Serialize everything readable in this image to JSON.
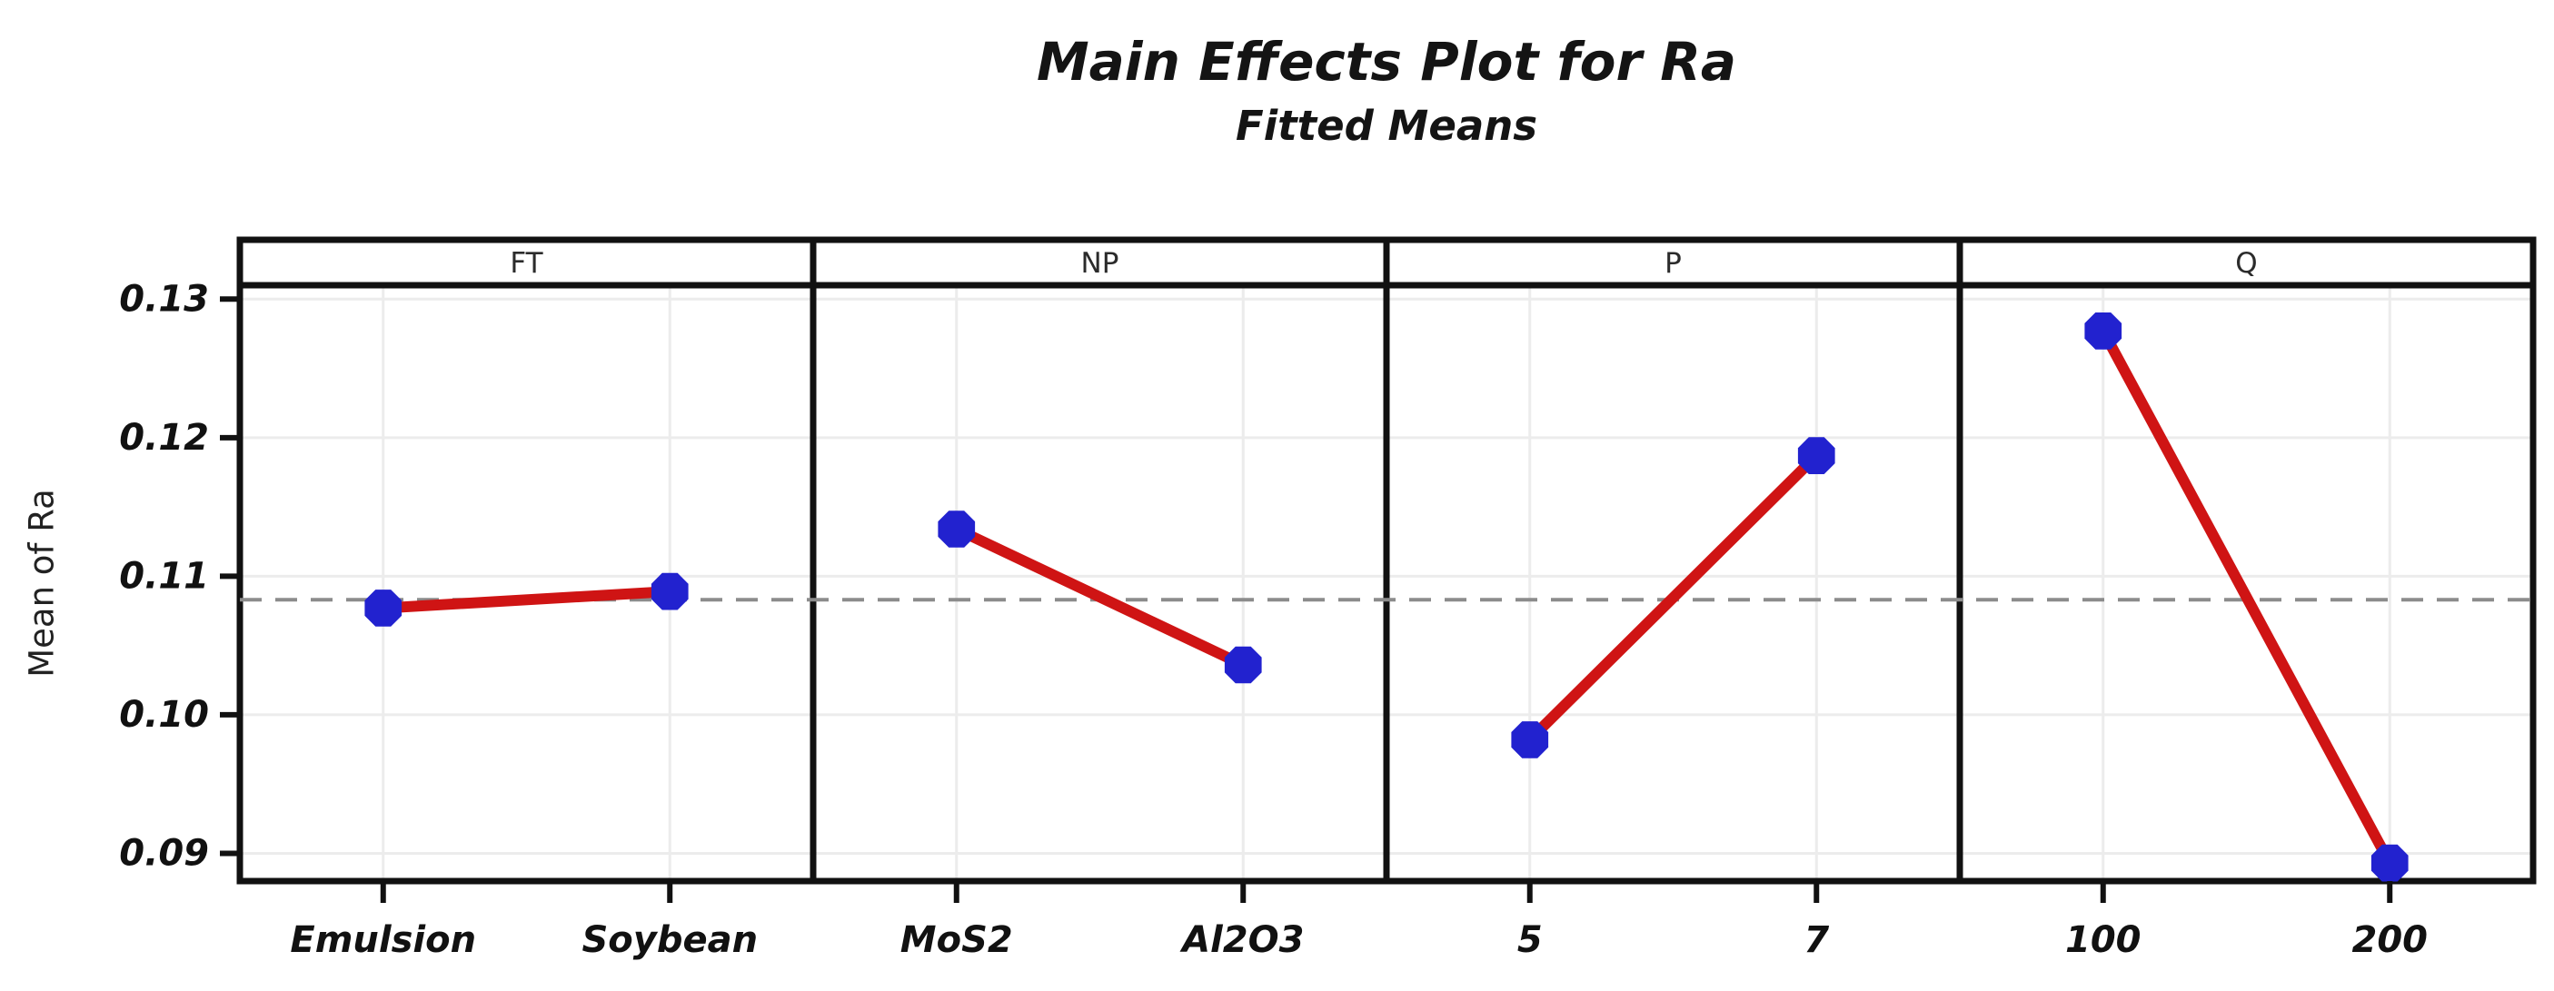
{
  "title": "Main Effects Plot for Ra",
  "subtitle": "Fitted Means",
  "chart_data": {
    "type": "line",
    "title": "Main Effects Plot for Ra",
    "subtitle": "Fitted Means",
    "ylabel": "Mean of Ra",
    "ylim": [
      0.088,
      0.131
    ],
    "yticks": [
      0.09,
      0.1,
      0.11,
      0.12,
      0.13
    ],
    "ytick_labels": [
      "0.09",
      "0.10",
      "0.11",
      "0.12",
      "0.13"
    ],
    "reference_line_mean": 0.1083,
    "grid": true,
    "legend": "none",
    "panels": [
      {
        "factor": "FT",
        "categories": [
          "Emulsion",
          "Soybean"
        ],
        "values": [
          0.1077,
          0.1089
        ]
      },
      {
        "factor": "NP",
        "categories": [
          "MoS2",
          "Al2O3"
        ],
        "values": [
          0.1134,
          0.1036
        ]
      },
      {
        "factor": "P",
        "categories": [
          "5",
          "7"
        ],
        "values": [
          0.0982,
          0.1187
        ]
      },
      {
        "factor": "Q",
        "categories": [
          "100",
          "200"
        ],
        "values": [
          0.1277,
          0.0893
        ]
      }
    ],
    "colors": {
      "series_line": "#cf1414",
      "marker": "#2222cf",
      "reference_line": "#8c8c8c",
      "gridline": "#ececec",
      "frame": "#111111",
      "title_text": "#141414",
      "header_text": "#2b2b2b"
    }
  }
}
